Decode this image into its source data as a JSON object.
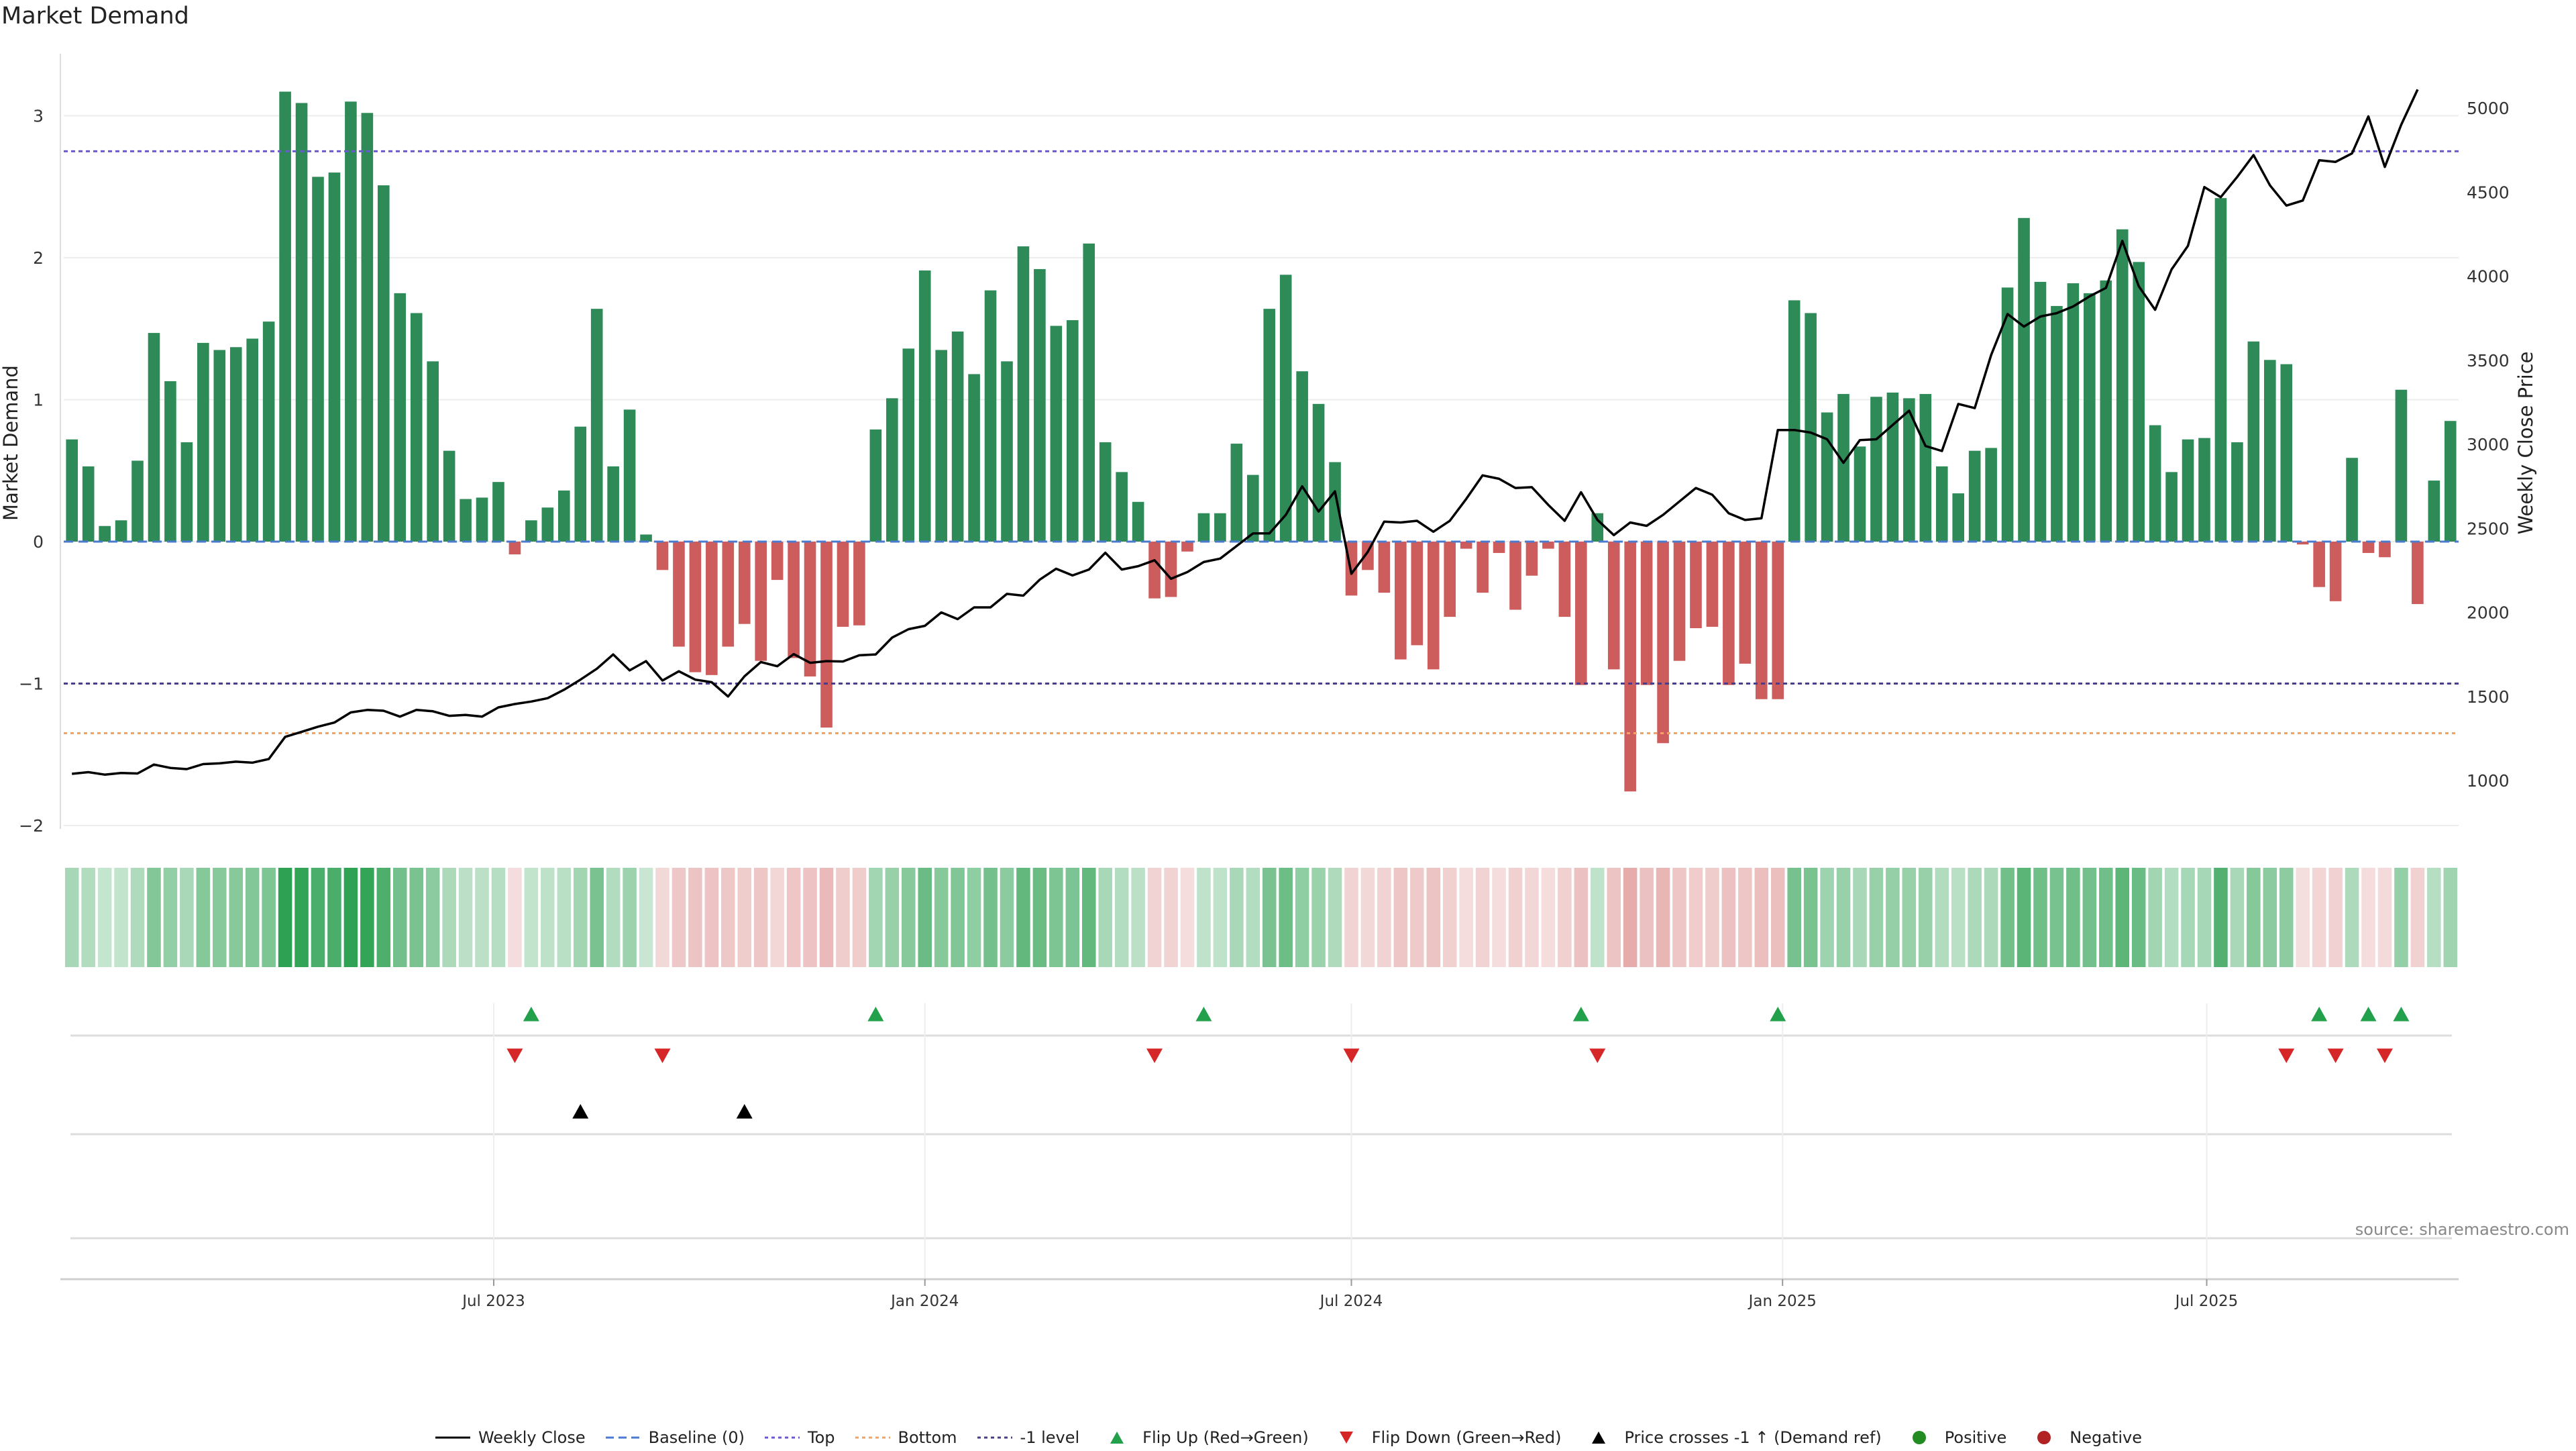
{
  "title": "Market Demand",
  "source": "source: sharemaestro.com",
  "colors": {
    "positive": "#2e8b57",
    "negative": "#cd5c5c",
    "price": "#000000",
    "top": "#6a5acd",
    "bottom": "#f4a460",
    "level": "#483d8b",
    "flip_up": "#22a04b",
    "flip_down": "#d62728",
    "cross": "#000000",
    "pos_dot": "#228b22",
    "neg_dot": "#b22222"
  },
  "legend": [
    {
      "key": "weekly_close",
      "label": "Weekly Close",
      "symbol": "line-solid",
      "color": "#000000"
    },
    {
      "key": "baseline",
      "label": "Baseline (0)",
      "symbol": "line-dash",
      "color": "#4a7bd0"
    },
    {
      "key": "top",
      "label": "Top",
      "symbol": "line-dot",
      "color": "#6a5acd"
    },
    {
      "key": "bottom",
      "label": "Bottom",
      "symbol": "line-dot",
      "color": "#f4a460"
    },
    {
      "key": "minus1",
      "label": "-1 level",
      "symbol": "line-dot",
      "color": "#483d8b"
    },
    {
      "key": "flip_up",
      "label": "Flip Up (Red→Green)",
      "symbol": "tri-up",
      "color": "#22a04b"
    },
    {
      "key": "flip_down",
      "label": "Flip Down (Green→Red)",
      "symbol": "tri-down",
      "color": "#d62728"
    },
    {
      "key": "cross",
      "label": "Price crosses -1 ↑ (Demand ref)",
      "symbol": "tri-up",
      "color": "#000000"
    },
    {
      "key": "positive",
      "label": "Positive",
      "symbol": "dot",
      "color": "#228b22"
    },
    {
      "key": "negative",
      "label": "Negative",
      "symbol": "dot",
      "color": "#b22222"
    }
  ],
  "chart_data": {
    "type": "bar",
    "title": "Market Demand",
    "ylabel": "Market Demand",
    "y2label": "Weekly Close Price",
    "ylim": [
      -2,
      3.3
    ],
    "y2lim": [
      700,
      5300
    ],
    "yticks": [
      "−2",
      "−1",
      "0",
      "1",
      "2",
      "3"
    ],
    "y2ticks": [
      "1000",
      "1500",
      "2000",
      "2500",
      "3000",
      "3500",
      "4000",
      "4500",
      "5000"
    ],
    "x_start": "2023-01-02",
    "x_interval": "weekly",
    "xticks": [
      "Jul 2023",
      "Jan 2024",
      "Jul 2024",
      "Jan 2025",
      "Jul 2025"
    ],
    "top_level": 2.75,
    "bottom_level": -1.35,
    "minus1_level": -1.0,
    "grid": true,
    "legend_position": "bottom",
    "demand": [
      0.72,
      0.53,
      0.11,
      0.15,
      0.57,
      1.47,
      1.13,
      0.7,
      1.4,
      1.35,
      1.37,
      1.43,
      1.55,
      3.17,
      3.09,
      2.57,
      2.6,
      3.1,
      3.02,
      2.51,
      1.75,
      1.61,
      1.27,
      0.64,
      0.3,
      0.31,
      0.42,
      -0.09,
      0.15,
      0.24,
      0.36,
      0.81,
      1.64,
      0.53,
      0.93,
      0.05,
      -0.2,
      -0.74,
      -0.92,
      -0.94,
      -0.74,
      -0.58,
      -0.84,
      -0.27,
      -0.82,
      -0.95,
      -1.31,
      -0.6,
      -0.59,
      0.79,
      1.01,
      1.36,
      1.91,
      1.35,
      1.48,
      1.18,
      1.77,
      1.27,
      2.08,
      1.92,
      1.52,
      1.56,
      2.1,
      0.7,
      0.49,
      0.28,
      -0.4,
      -0.39,
      -0.07,
      0.2,
      0.2,
      0.69,
      0.47,
      1.64,
      1.88,
      1.2,
      0.97,
      0.56,
      -0.38,
      -0.2,
      -0.36,
      -0.83,
      -0.73,
      -0.9,
      -0.53,
      -0.05,
      -0.36,
      -0.08,
      -0.48,
      -0.24,
      -0.05,
      -0.53,
      -1.01,
      0.2,
      -0.9,
      -1.76,
      -1.01,
      -1.42,
      -0.84,
      -0.61,
      -0.6,
      -1.01,
      -0.86,
      -1.11,
      -1.11,
      1.7,
      1.61,
      0.91,
      1.04,
      0.67,
      1.02,
      1.05,
      1.01,
      1.04,
      0.53,
      0.34,
      0.64,
      0.66,
      1.79,
      2.28,
      1.83,
      1.66,
      1.82,
      1.75,
      1.84,
      2.2,
      1.97,
      0.82,
      0.49,
      0.72,
      0.73,
      2.42,
      0.7,
      1.41,
      1.28,
      1.25,
      -0.02,
      -0.32,
      -0.42,
      0.59,
      -0.08,
      -0.11,
      1.07,
      -0.44,
      0.43,
      0.85
    ],
    "price": [
      1040,
      1050,
      1035,
      1045,
      1042,
      1095,
      1075,
      1068,
      1098,
      1102,
      1112,
      1106,
      1128,
      1260,
      1290,
      1320,
      1345,
      1405,
      1420,
      1415,
      1380,
      1420,
      1412,
      1385,
      1390,
      1380,
      1435,
      1455,
      1470,
      1490,
      1540,
      1600,
      1665,
      1750,
      1655,
      1710,
      1595,
      1650,
      1600,
      1585,
      1500,
      1620,
      1705,
      1680,
      1752,
      1700,
      1710,
      1708,
      1745,
      1750,
      1850,
      1900,
      1920,
      2000,
      1960,
      2030,
      2030,
      2110,
      2100,
      2195,
      2260,
      2220,
      2255,
      2355,
      2255,
      2275,
      2310,
      2200,
      2240,
      2300,
      2320,
      2395,
      2470,
      2470,
      2580,
      2750,
      2600,
      2720,
      2230,
      2360,
      2540,
      2535,
      2545,
      2480,
      2545,
      2675,
      2815,
      2795,
      2740,
      2745,
      2640,
      2545,
      2715,
      2550,
      2460,
      2535,
      2515,
      2580,
      2660,
      2740,
      2700,
      2590,
      2550,
      2560,
      3085,
      3085,
      3070,
      3030,
      2890,
      3025,
      3030,
      3115,
      3200,
      2990,
      2960,
      3240,
      3215,
      3530,
      3775,
      3700,
      3760,
      3780,
      3820,
      3880,
      3930,
      4210,
      3940,
      3800,
      4040,
      4180,
      4530,
      4470,
      4590,
      4720,
      4540,
      4420,
      4450,
      4690,
      4680,
      4730,
      4950,
      4650,
      4900,
      5110
    ],
    "flip_up": [
      28,
      49,
      69,
      92,
      104,
      137,
      140,
      142
    ],
    "flip_down": [
      27,
      36,
      66,
      78,
      93,
      135,
      138,
      141
    ],
    "price_cross_up": [
      31,
      41
    ]
  }
}
